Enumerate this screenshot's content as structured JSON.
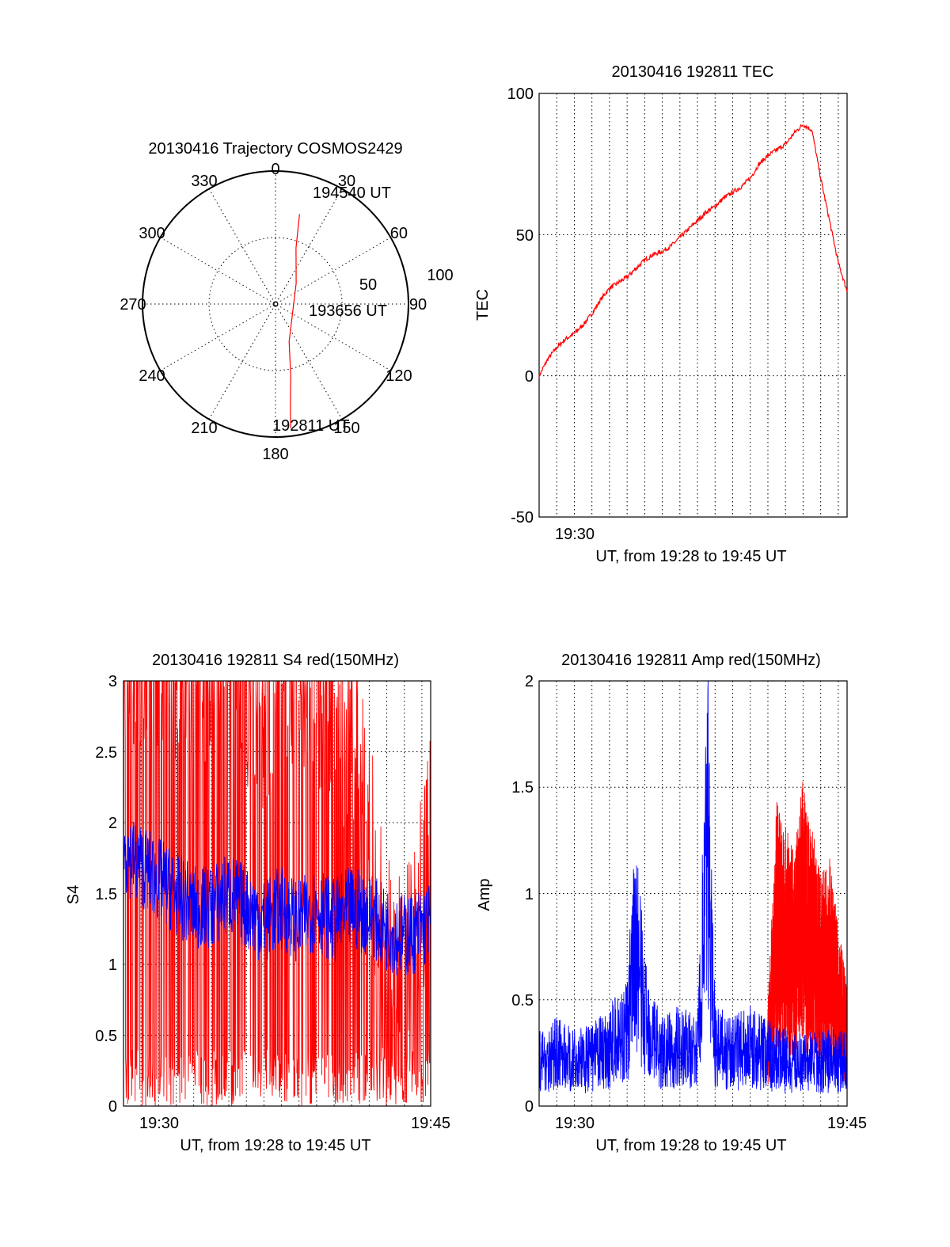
{
  "colors": {
    "red": "#ff0000",
    "blue": "#0000ff",
    "axis": "#000000",
    "background": "#ffffff"
  },
  "trajectory": {
    "title": "20130416 Trajectory COSMOS2429",
    "azimuth_labels": [
      "0",
      "30",
      "60",
      "90",
      "120",
      "150",
      "180",
      "210",
      "240",
      "270",
      "300",
      "330"
    ],
    "elevation_labels": [
      "50",
      "100"
    ],
    "time_labels": [
      {
        "text": "194540 UT",
        "az": 15,
        "el": 70
      },
      {
        "text": "193656 UT",
        "az": 90,
        "el": 5
      },
      {
        "text": "192811 UT",
        "az": 173,
        "el": 94
      }
    ],
    "path": [
      {
        "az": 15,
        "el": 70
      },
      {
        "az": 20,
        "el": 45
      },
      {
        "az": 45,
        "el": 22
      },
      {
        "az": 160,
        "el": 30
      },
      {
        "az": 168,
        "el": 55
      },
      {
        "az": 172,
        "el": 80
      },
      {
        "az": 173,
        "el": 94
      }
    ]
  },
  "tec": {
    "title": "20130416 192811 TEC",
    "ylabel": "TEC",
    "xlabel": "UT, from 19:28 to 19:45 UT",
    "ytick_labels": [
      "-50",
      "0",
      "50",
      "100"
    ],
    "xtick_labels": [
      "19:30"
    ],
    "chart_data": {
      "type": "line",
      "x_range_minutes": [
        28.0,
        45.5
      ],
      "ylim": [
        -50,
        100
      ],
      "grid": true,
      "series": [
        {
          "color": "red",
          "x": [
            28.0,
            28.5,
            29.0,
            29.5,
            30.0,
            30.5,
            31.0,
            31.5,
            32.0,
            32.5,
            33.0,
            33.5,
            34.0,
            34.5,
            35.0,
            35.5,
            36.0,
            36.5,
            37.0,
            37.5,
            38.0,
            38.5,
            39.0,
            39.5,
            40.0,
            40.5,
            41.0,
            41.5,
            42.0,
            42.5,
            43.0,
            43.5,
            44.0,
            44.5,
            45.0,
            45.5
          ],
          "y": [
            0,
            6,
            10,
            13,
            15,
            18,
            22,
            27,
            31,
            33,
            35,
            38,
            41,
            43,
            44,
            46,
            49,
            52,
            55,
            58,
            60,
            63,
            65,
            67,
            70,
            75,
            78,
            80,
            82,
            86,
            89,
            87,
            70,
            55,
            40,
            30
          ]
        }
      ]
    }
  },
  "s4": {
    "title": "20130416 192811 S4 red(150MHz)",
    "ylabel": "S4",
    "xlabel": "UT, from 19:28 to 19:45 UT",
    "ytick_labels": [
      "0",
      "0.5",
      "1",
      "1.5",
      "2",
      "2.5",
      "3"
    ],
    "xtick_labels": [
      "19:30",
      "19:45"
    ],
    "chart_data": {
      "type": "line",
      "x_range_minutes": [
        28.0,
        45.5
      ],
      "ylim": [
        0,
        3
      ],
      "grid": true,
      "series": [
        {
          "color": "red",
          "x": [
            28,
            30,
            32,
            34,
            36,
            38,
            40,
            41,
            42,
            42.5,
            43,
            43.5,
            44,
            44.5,
            45,
            45.5
          ],
          "y": [
            3,
            3,
            2.8,
            3,
            2.5,
            2.9,
            2.5,
            2.3,
            1.6,
            1.0,
            0.7,
            0.5,
            0.6,
            0.8,
            1.2,
            1.5
          ]
        },
        {
          "color": "blue",
          "x": [
            28,
            29,
            30,
            31,
            32,
            33,
            34,
            35,
            36,
            37,
            38,
            39,
            40,
            41,
            42,
            43,
            44,
            45,
            45.5
          ],
          "y": [
            1.8,
            1.7,
            1.6,
            1.5,
            1.4,
            1.4,
            1.5,
            1.4,
            1.3,
            1.4,
            1.3,
            1.4,
            1.3,
            1.4,
            1.35,
            1.25,
            1.2,
            1.25,
            1.3
          ]
        }
      ]
    }
  },
  "amp": {
    "title": "20130416 192811 Amp red(150MHz)",
    "ylabel": "Amp",
    "xlabel": "UT, from 19:28 to 19:45 UT",
    "ytick_labels": [
      "0",
      "0.5",
      "1",
      "1.5",
      "2"
    ],
    "xtick_labels": [
      "19:30",
      "19:45"
    ],
    "chart_data": {
      "type": "line",
      "x_range_minutes": [
        28.0,
        45.5
      ],
      "ylim": [
        0,
        2
      ],
      "grid": true,
      "series": [
        {
          "color": "red",
          "x": [
            41.0,
            41.5,
            42.0,
            42.5,
            43.0,
            43.5,
            44.0,
            44.5,
            45.0,
            45.5
          ],
          "y": [
            0.4,
            1.2,
            1.1,
            1.0,
            1.3,
            1.1,
            0.9,
            1.0,
            0.7,
            0.5
          ]
        },
        {
          "color": "blue",
          "x": [
            28,
            29,
            30,
            31,
            32,
            33,
            33.5,
            34,
            35,
            36,
            37,
            37.6,
            38,
            39,
            40,
            41,
            42,
            43,
            44,
            45,
            45.5
          ],
          "y": [
            0.3,
            0.35,
            0.3,
            0.32,
            0.4,
            0.5,
            1.1,
            0.6,
            0.35,
            0.4,
            0.35,
            1.75,
            0.4,
            0.35,
            0.4,
            0.35,
            0.3,
            0.3,
            0.3,
            0.3,
            0.3
          ]
        }
      ]
    }
  }
}
